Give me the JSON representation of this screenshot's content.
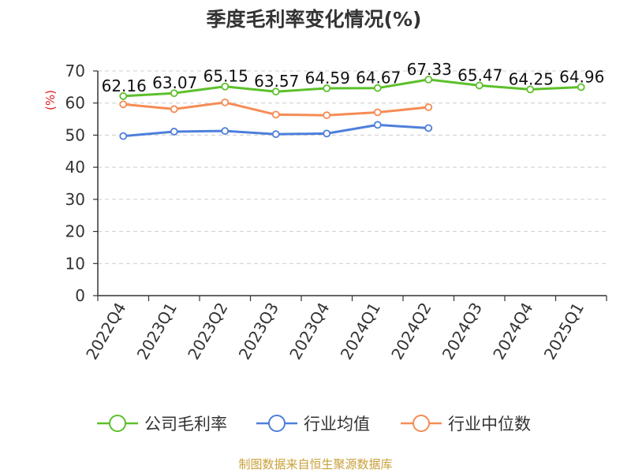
{
  "chart_data": {
    "type": "line",
    "title": "季度毛利率变化情况(%)",
    "ylabel": "(%)",
    "xlabel": "",
    "ylim": [
      0,
      70
    ],
    "yticks": [
      0,
      10,
      20,
      30,
      40,
      50,
      60,
      70
    ],
    "categories": [
      "2022Q4",
      "2023Q1",
      "2023Q2",
      "2023Q3",
      "2023Q4",
      "2024Q1",
      "2024Q2",
      "2024Q3",
      "2024Q4",
      "2025Q1"
    ],
    "grid": "horizontal dashed",
    "legend_position": "bottom",
    "series": [
      {
        "name": "公司毛利率",
        "color": "#5cc02b",
        "values": [
          62.16,
          63.07,
          65.15,
          63.57,
          64.59,
          64.67,
          67.33,
          65.47,
          64.25,
          64.96
        ],
        "labels": [
          "62.16",
          "63.07",
          "65.15",
          "63.57",
          "64.59",
          "64.67",
          "67.33",
          "65.47",
          "64.25",
          "64.96"
        ]
      },
      {
        "name": "行业均值",
        "color": "#4e7fdb",
        "values": [
          49.7,
          51.1,
          51.3,
          50.3,
          50.5,
          53.2,
          52.2,
          null,
          null,
          null
        ]
      },
      {
        "name": "行业中位数",
        "color": "#f58c55",
        "values": [
          59.6,
          58.1,
          60.2,
          56.4,
          56.2,
          57.1,
          58.7,
          null,
          null,
          null
        ]
      }
    ],
    "source": "制图数据来自恒生聚源数据库"
  }
}
